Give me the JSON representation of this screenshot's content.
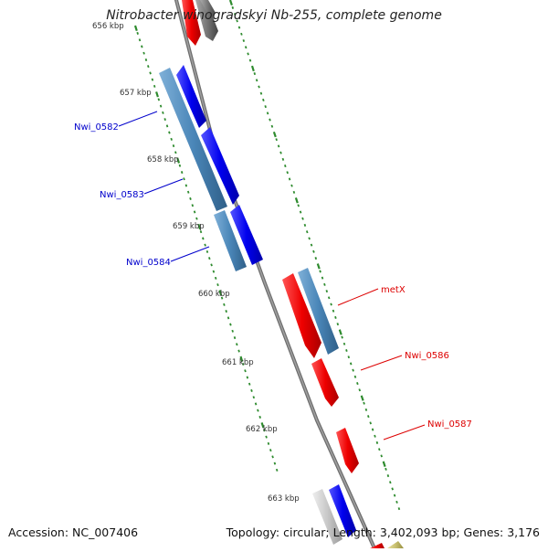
{
  "title": "Nitrobacter winogradskyi Nb-255, complete genome",
  "footer": {
    "accession": "Accession: NC_007406",
    "summary": "Topology: circular; Length: 3,402,093 bp; Genes: 3,176"
  },
  "colors": {
    "backbone": "#808080",
    "tick": "#2e8b2e",
    "forward_gene": "#0000ee",
    "forward_cds": "#4a86b8",
    "reverse_gene": "#ee0000",
    "other_gene": "#777777",
    "pseudo_gene": "#c8c8c8",
    "misc_feature": "#c8c070",
    "label_forward": "#0000cc",
    "label_reverse": "#dd0000"
  },
  "scale_labels": [
    "656 kbp",
    "657 kbp",
    "658 kbp",
    "659 kbp",
    "660 kbp",
    "661 kbp",
    "662 kbp",
    "663 kbp"
  ],
  "gene_labels": [
    {
      "text": "Nwi_0582",
      "strand": "forward"
    },
    {
      "text": "Nwi_0583",
      "strand": "forward"
    },
    {
      "text": "Nwi_0584",
      "strand": "forward"
    },
    {
      "text": "metX",
      "strand": "reverse"
    },
    {
      "text": "Nwi_0586",
      "strand": "reverse"
    },
    {
      "text": "Nwi_0587",
      "strand": "reverse"
    }
  ]
}
